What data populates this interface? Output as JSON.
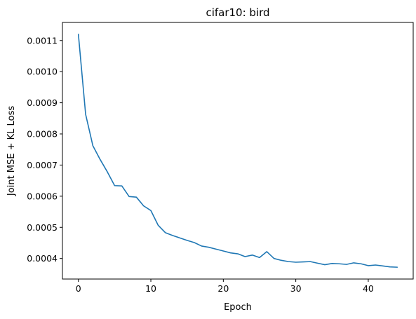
{
  "chart_data": {
    "type": "line",
    "title": "cifar10: bird",
    "xlabel": "Epoch",
    "ylabel": "Joint MSE + KL Loss",
    "xlim": [
      -2.2,
      46.2
    ],
    "ylim": [
      0.000334,
      0.001158
    ],
    "x_ticks": [
      0,
      10,
      20,
      30,
      40
    ],
    "x_tick_labels": [
      "0",
      "10",
      "20",
      "30",
      "40"
    ],
    "y_ticks": [
      0.0004,
      0.0005,
      0.0006,
      0.0007,
      0.0008,
      0.0009,
      0.001,
      0.0011
    ],
    "y_tick_labels": [
      "0.0004",
      "0.0005",
      "0.0006",
      "0.0007",
      "0.0008",
      "0.0009",
      "0.0010",
      "0.0011"
    ],
    "grid": false,
    "series": [
      {
        "color": "#1f77b4",
        "x": [
          0,
          1,
          2,
          3,
          4,
          5,
          6,
          7,
          8,
          9,
          10,
          11,
          12,
          13,
          14,
          15,
          16,
          17,
          18,
          19,
          20,
          21,
          22,
          23,
          24,
          25,
          26,
          27,
          28,
          29,
          30,
          31,
          32,
          33,
          34,
          35,
          36,
          37,
          38,
          39,
          40,
          41,
          42,
          43,
          44
        ],
        "y": [
          0.00112,
          0.000863,
          0.000762,
          0.000718,
          0.000678,
          0.000634,
          0.000633,
          0.000599,
          0.000597,
          0.000569,
          0.000554,
          0.000507,
          0.000483,
          0.000474,
          0.000466,
          0.000458,
          0.000451,
          0.00044,
          0.000436,
          0.00043,
          0.000424,
          0.000418,
          0.000415,
          0.000406,
          0.000411,
          0.000403,
          0.000422,
          0.0004,
          0.000394,
          0.00039,
          0.000388,
          0.000389,
          0.00039,
          0.000385,
          0.00038,
          0.000384,
          0.000383,
          0.000381,
          0.000386,
          0.000383,
          0.000377,
          0.000379,
          0.000376,
          0.000373,
          0.000372
        ]
      }
    ]
  }
}
